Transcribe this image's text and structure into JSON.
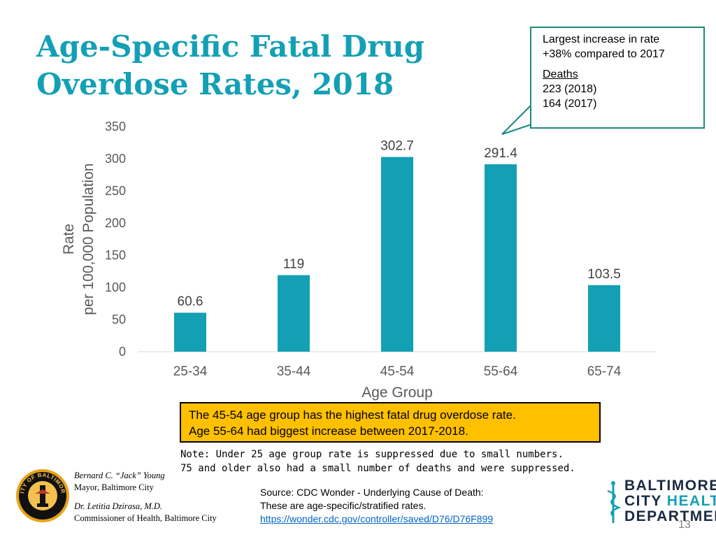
{
  "title": {
    "line1": "Age-Specific Fatal Drug",
    "line2": "Overdose Rates, 2018"
  },
  "callout": {
    "line1": "Largest increase in rate",
    "line2": "+38% compared to 2017",
    "deaths_label": "Deaths",
    "deaths_2018": "223 (2018)",
    "deaths_2017": "164 (2017)",
    "border_color": "#1c8a7d"
  },
  "chart_data": {
    "type": "bar",
    "categories": [
      "25-34",
      "35-44",
      "45-54",
      "55-64",
      "65-74"
    ],
    "values": [
      60.6,
      119,
      302.7,
      291.4,
      103.5
    ],
    "value_labels": [
      "60.6",
      "119",
      "302.7",
      "291.4",
      "103.5"
    ],
    "yticks": [
      0,
      50,
      100,
      150,
      200,
      250,
      300,
      350
    ],
    "ylim": [
      0,
      350
    ],
    "xlabel": "Age Group",
    "ylabel_line1": "Rate",
    "ylabel_line2": "per 100,000 Population",
    "bar_color": "#13a0b4",
    "grid": false
  },
  "highlight_box": {
    "line1": "The 45-54 age group has the highest fatal drug overdose rate.",
    "line2": "Age 55-64 had biggest increase between 2017-2018.",
    "color": "#ffc000"
  },
  "note": {
    "line1": "Note: Under 25 age group rate is suppressed due to small numbers.",
    "line2": "75 and older also had a small number of deaths and were suppressed."
  },
  "signature": {
    "mayor_name": "Bernard C. “Jack” Young",
    "mayor_title": "Mayor, Baltimore City",
    "commissioner_name": "Dr. Letitia Dzirasa, M.D.",
    "commissioner_title": "Commissioner of Health, Baltimore City",
    "seal_text": "CITY OF BALTIMORE"
  },
  "source": {
    "line1": "Source: CDC Wonder - Underlying Cause of Death:",
    "line2": "These are age-specific/stratified rates.",
    "link": "https://wonder.cdc.gov/controller/saved/D76/D76F899"
  },
  "logo": {
    "line1": "BALTIMORE",
    "line2a": "CITY ",
    "line2b": "HEALTH",
    "line3": "DEPARTMENT"
  },
  "page_number": "13"
}
